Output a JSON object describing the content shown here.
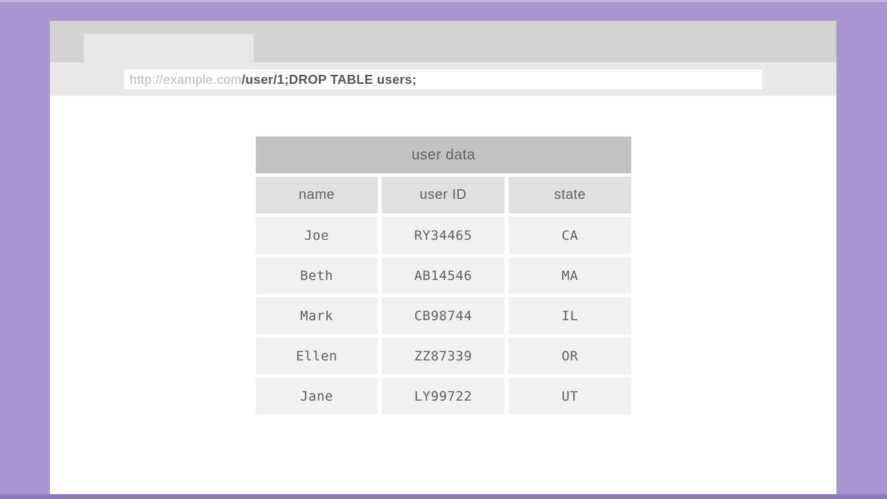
{
  "browser": {
    "url": {
      "base": "http://example.com",
      "path": "/user/1;DROP TABLE users;"
    }
  },
  "table": {
    "title": "user data",
    "columns": [
      "name",
      "user ID",
      "state"
    ],
    "rows": [
      {
        "name": "Joe",
        "user_id": "RY34465",
        "state": "CA"
      },
      {
        "name": "Beth",
        "user_id": "AB14546",
        "state": "MA"
      },
      {
        "name": "Mark",
        "user_id": "CB98744",
        "state": "IL"
      },
      {
        "name": "Ellen",
        "user_id": "ZZ87339",
        "state": "OR"
      },
      {
        "name": "Jane",
        "user_id": "LY99722",
        "state": "UT"
      }
    ]
  },
  "colors": {
    "frame_purple": "#a795cf",
    "frame_purple_light": "#c3b4e0",
    "frame_purple_dark": "#8d7ab8",
    "chrome_gray": "#d3d3d5",
    "chrome_light_gray": "#e8e8ea",
    "table_title_bg": "#c2c2c2",
    "table_header_bg": "#e0e0e1",
    "table_cell_bg": "#f1f1f2",
    "text_gray": "#606062",
    "url_muted": "#b9b9bc",
    "url_dark": "#565658"
  }
}
